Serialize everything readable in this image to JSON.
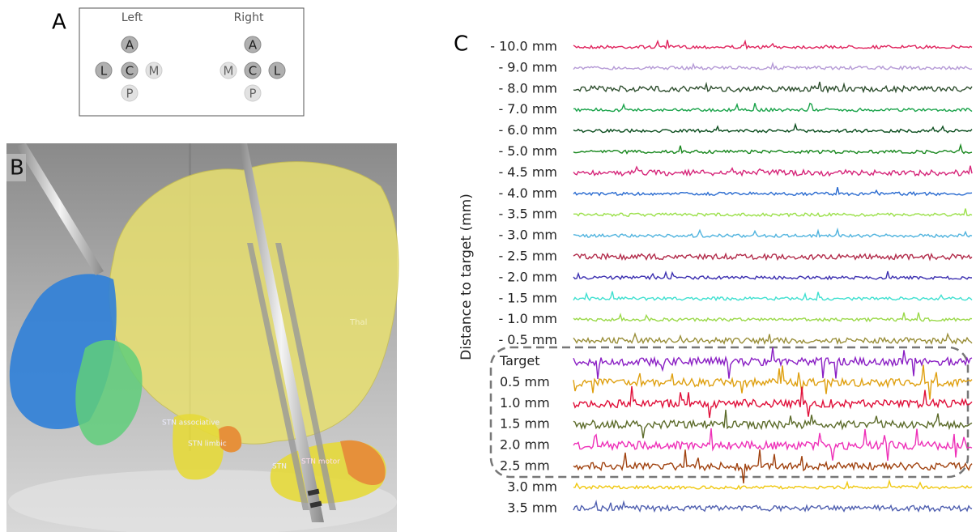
{
  "panel_a": {
    "label": "A",
    "left": {
      "title": "Left",
      "contacts": [
        "A",
        "L",
        "C",
        "M",
        "P"
      ]
    },
    "right": {
      "title": "Right",
      "contacts": [
        "A",
        "M",
        "C",
        "L",
        "P"
      ]
    }
  },
  "panel_b": {
    "label": "B",
    "annotations": [
      "Thal",
      "STN associative",
      "STN limbic",
      "STN",
      "STN motor"
    ]
  },
  "panel_c": {
    "label": "C",
    "y_axis_label": "Distance to target  (mm)",
    "traces_above": [
      {
        "label": "- 10.0 mm",
        "color": "#e0245e"
      },
      {
        "label": "- 9.0 mm",
        "color": "#b59ad6"
      },
      {
        "label": "- 8.0 mm",
        "color": "#2f4f2f"
      },
      {
        "label": "- 7.0 mm",
        "color": "#1aa34a"
      },
      {
        "label": "- 6.0 mm",
        "color": "#0b4d1e"
      },
      {
        "label": "- 5.0 mm",
        "color": "#15861b"
      },
      {
        "label": "- 4.5 mm",
        "color": "#d6267a"
      },
      {
        "label": "- 4.0 mm",
        "color": "#2a6bd0"
      },
      {
        "label": "- 3.5 mm",
        "color": "#9be04a"
      },
      {
        "label": "- 3.0 mm",
        "color": "#4fb3de"
      },
      {
        "label": "- 2.5 mm",
        "color": "#b22b4a"
      },
      {
        "label": "- 2.0 mm",
        "color": "#3b2fb0"
      },
      {
        "label": "- 1.5 mm",
        "color": "#3fe0d0"
      },
      {
        "label": "- 1.0 mm",
        "color": "#9bd94a"
      },
      {
        "label": "- 0.5 mm",
        "color": "#9a8f3a"
      }
    ],
    "target_region": [
      {
        "label": "Target",
        "color": "#8a1fc4"
      },
      {
        "label": "0.5 mm",
        "color": "#dfa010"
      },
      {
        "label": "1.0 mm",
        "color": "#e0103a"
      },
      {
        "label": "1.5 mm",
        "color": "#5c6b2a"
      },
      {
        "label": "2.0 mm",
        "color": "#ee30b8"
      },
      {
        "label": "2.5 mm",
        "color": "#a0420f"
      }
    ],
    "traces_below": [
      {
        "label": "3.0 mm",
        "color": "#f0c810"
      },
      {
        "label": "3.5 mm",
        "color": "#5060b0"
      }
    ]
  }
}
